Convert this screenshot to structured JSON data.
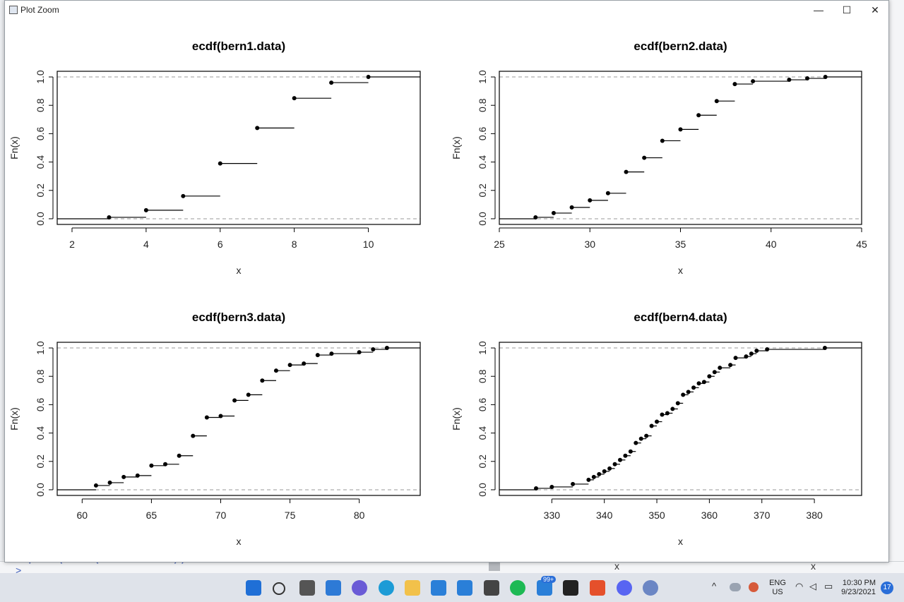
{
  "window": {
    "title": "Plot Zoom",
    "minimize_glyph": "—",
    "maximize_glyph": "☐",
    "close_glyph": "✕"
  },
  "background": {
    "console_text": "plot(ecdf(bern4.data))",
    "console_prompt": ">",
    "panel_label_1": "x",
    "panel_label_2": "x"
  },
  "chart_data": [
    {
      "type": "step",
      "title": "ecdf(bern1.data)",
      "xlabel": "x",
      "ylabel": "Fn(x)",
      "xlim": [
        1.6,
        11.4
      ],
      "ylim": [
        -0.04,
        1.04
      ],
      "xticks": [
        2,
        4,
        6,
        8,
        10
      ],
      "yticks": [
        0.0,
        0.2,
        0.4,
        0.6,
        0.8,
        1.0
      ],
      "points": [
        {
          "x": 3,
          "y": 0.01
        },
        {
          "x": 4,
          "y": 0.06
        },
        {
          "x": 5,
          "y": 0.16
        },
        {
          "x": 6,
          "y": 0.39
        },
        {
          "x": 7,
          "y": 0.64
        },
        {
          "x": 8,
          "y": 0.85
        },
        {
          "x": 9,
          "y": 0.96
        },
        {
          "x": 10,
          "y": 1.0
        }
      ]
    },
    {
      "type": "step",
      "title": "ecdf(bern2.data)",
      "xlabel": "x",
      "ylabel": "Fn(x)",
      "xlim": [
        25,
        45
      ],
      "ylim": [
        -0.04,
        1.04
      ],
      "xticks": [
        25,
        30,
        35,
        40,
        45
      ],
      "yticks": [
        0.0,
        0.2,
        0.4,
        0.6,
        0.8,
        1.0
      ],
      "points": [
        {
          "x": 27,
          "y": 0.01
        },
        {
          "x": 28,
          "y": 0.04
        },
        {
          "x": 29,
          "y": 0.08
        },
        {
          "x": 30,
          "y": 0.13
        },
        {
          "x": 31,
          "y": 0.18
        },
        {
          "x": 32,
          "y": 0.33
        },
        {
          "x": 33,
          "y": 0.43
        },
        {
          "x": 34,
          "y": 0.55
        },
        {
          "x": 35,
          "y": 0.63
        },
        {
          "x": 36,
          "y": 0.73
        },
        {
          "x": 37,
          "y": 0.83
        },
        {
          "x": 38,
          "y": 0.95
        },
        {
          "x": 39,
          "y": 0.97
        },
        {
          "x": 41,
          "y": 0.98
        },
        {
          "x": 42,
          "y": 0.99
        },
        {
          "x": 43,
          "y": 1.0
        }
      ]
    },
    {
      "type": "step",
      "title": "ecdf(bern3.data)",
      "xlabel": "x",
      "ylabel": "Fn(x)",
      "xlim": [
        58.2,
        84.4
      ],
      "ylim": [
        -0.04,
        1.04
      ],
      "xticks": [
        60,
        65,
        70,
        75,
        80
      ],
      "yticks": [
        0.0,
        0.2,
        0.4,
        0.6,
        0.8,
        1.0
      ],
      "points": [
        {
          "x": 61,
          "y": 0.03
        },
        {
          "x": 62,
          "y": 0.05
        },
        {
          "x": 63,
          "y": 0.09
        },
        {
          "x": 64,
          "y": 0.1
        },
        {
          "x": 65,
          "y": 0.17
        },
        {
          "x": 66,
          "y": 0.18
        },
        {
          "x": 67,
          "y": 0.24
        },
        {
          "x": 68,
          "y": 0.38
        },
        {
          "x": 69,
          "y": 0.51
        },
        {
          "x": 70,
          "y": 0.52
        },
        {
          "x": 71,
          "y": 0.63
        },
        {
          "x": 72,
          "y": 0.67
        },
        {
          "x": 73,
          "y": 0.77
        },
        {
          "x": 74,
          "y": 0.84
        },
        {
          "x": 75,
          "y": 0.88
        },
        {
          "x": 76,
          "y": 0.89
        },
        {
          "x": 77,
          "y": 0.95
        },
        {
          "x": 78,
          "y": 0.96
        },
        {
          "x": 80,
          "y": 0.97
        },
        {
          "x": 81,
          "y": 0.99
        },
        {
          "x": 82,
          "y": 1.0
        }
      ]
    },
    {
      "type": "step",
      "title": "ecdf(bern4.data)",
      "xlabel": "x",
      "ylabel": "Fn(x)",
      "xlim": [
        320,
        389
      ],
      "ylim": [
        -0.04,
        1.04
      ],
      "xticks": [
        330,
        340,
        350,
        360,
        370,
        380
      ],
      "yticks": [
        0.0,
        0.2,
        0.4,
        0.6,
        0.8,
        1.0
      ],
      "points": [
        {
          "x": 327,
          "y": 0.01
        },
        {
          "x": 330,
          "y": 0.02
        },
        {
          "x": 334,
          "y": 0.04
        },
        {
          "x": 337,
          "y": 0.07
        },
        {
          "x": 338,
          "y": 0.09
        },
        {
          "x": 339,
          "y": 0.11
        },
        {
          "x": 340,
          "y": 0.13
        },
        {
          "x": 341,
          "y": 0.15
        },
        {
          "x": 342,
          "y": 0.18
        },
        {
          "x": 343,
          "y": 0.21
        },
        {
          "x": 344,
          "y": 0.24
        },
        {
          "x": 345,
          "y": 0.27
        },
        {
          "x": 346,
          "y": 0.33
        },
        {
          "x": 347,
          "y": 0.36
        },
        {
          "x": 348,
          "y": 0.38
        },
        {
          "x": 349,
          "y": 0.45
        },
        {
          "x": 350,
          "y": 0.48
        },
        {
          "x": 351,
          "y": 0.53
        },
        {
          "x": 352,
          "y": 0.54
        },
        {
          "x": 353,
          "y": 0.57
        },
        {
          "x": 354,
          "y": 0.61
        },
        {
          "x": 355,
          "y": 0.67
        },
        {
          "x": 356,
          "y": 0.69
        },
        {
          "x": 357,
          "y": 0.72
        },
        {
          "x": 358,
          "y": 0.75
        },
        {
          "x": 359,
          "y": 0.76
        },
        {
          "x": 360,
          "y": 0.8
        },
        {
          "x": 361,
          "y": 0.83
        },
        {
          "x": 362,
          "y": 0.86
        },
        {
          "x": 364,
          "y": 0.88
        },
        {
          "x": 365,
          "y": 0.93
        },
        {
          "x": 367,
          "y": 0.94
        },
        {
          "x": 368,
          "y": 0.96
        },
        {
          "x": 369,
          "y": 0.98
        },
        {
          "x": 371,
          "y": 0.99
        },
        {
          "x": 382,
          "y": 1.0
        }
      ]
    }
  ],
  "taskbar": {
    "lang_top": "ENG",
    "lang_bottom": "US",
    "time": "10:30 PM",
    "date": "9/23/2021",
    "notification_count": "17",
    "badge_count": "99+"
  }
}
